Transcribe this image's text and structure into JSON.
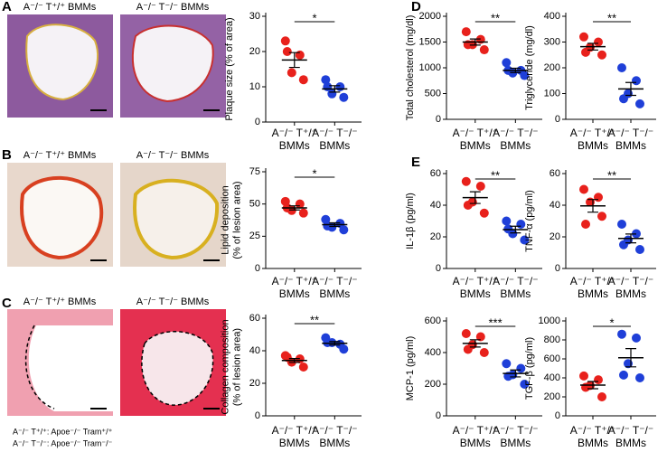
{
  "panels": {
    "letters": [
      "A",
      "B",
      "C",
      "D",
      "E"
    ],
    "image_titles": [
      "A⁻/⁻ T⁺/⁺ BMMs",
      "A⁻/⁻ T⁻/⁻ BMMs"
    ],
    "footnotes": [
      "A⁻/⁻ T⁺/⁺: Apoe⁻/⁻ Tram⁺/⁺",
      "A⁻/⁻ T⁻/⁻: Apoe⁻/⁻ Tram⁻/⁻"
    ]
  },
  "chart_data": [
    {
      "type": "scatter",
      "ylabel": [
        "Plaque size (% of area)"
      ],
      "ylim": [
        0,
        30
      ],
      "yticks": [
        0,
        10,
        20,
        30
      ],
      "significance": "*",
      "categories": [
        [
          "A⁻/⁻ T⁺/⁺",
          "BMMs"
        ],
        [
          "A⁻/⁻ T⁻/⁻",
          "BMMs"
        ]
      ],
      "groups": [
        {
          "color": "#e8211c",
          "values": [
            23,
            19,
            14,
            12,
            20
          ],
          "mean": 17.6,
          "sem": 2.1
        },
        {
          "color": "#1f3fd8",
          "values": [
            12,
            10,
            8,
            7,
            10
          ],
          "mean": 9.4,
          "sem": 0.9
        }
      ]
    },
    {
      "type": "scatter",
      "ylabel": [
        "Lipid deposition",
        "(% of lesion area)"
      ],
      "ylim": [
        0,
        75
      ],
      "yticks": [
        0,
        25,
        50,
        75
      ],
      "significance": "*",
      "categories": [
        [
          "A⁻/⁻ T⁺/⁺",
          "BMMs"
        ],
        [
          "A⁻/⁻ T⁻/⁻",
          "BMMs"
        ]
      ],
      "groups": [
        {
          "color": "#e8211c",
          "values": [
            52,
            50,
            45,
            43,
            47
          ],
          "mean": 47,
          "sem": 1.6
        },
        {
          "color": "#1f3fd8",
          "values": [
            38,
            35,
            32,
            30,
            33
          ],
          "mean": 34,
          "sem": 1.4
        }
      ]
    },
    {
      "type": "scatter",
      "ylabel": [
        "Collagen composition",
        "(% of lesion area)"
      ],
      "ylim": [
        0,
        60
      ],
      "yticks": [
        0,
        20,
        40,
        60
      ],
      "significance": "**",
      "categories": [
        [
          "A⁻/⁻ T⁺/⁺",
          "BMMs"
        ],
        [
          "A⁻/⁻ T⁻/⁻",
          "BMMs"
        ]
      ],
      "groups": [
        {
          "color": "#e8211c",
          "values": [
            37,
            35,
            33,
            30,
            36
          ],
          "mean": 34,
          "sem": 1.2
        },
        {
          "color": "#1f3fd8",
          "values": [
            48,
            44,
            45,
            41,
            45
          ],
          "mean": 44.6,
          "sem": 1.1
        }
      ]
    },
    {
      "type": "scatter",
      "ylabel": [
        "Total cholesterol (mg/dl)"
      ],
      "ylim": [
        0,
        2000
      ],
      "yticks": [
        0,
        500,
        1000,
        1500,
        2000
      ],
      "significance": "**",
      "categories": [
        [
          "A⁻/⁻ T⁺/⁺",
          "BMMs"
        ],
        [
          "A⁻/⁻ T⁻/⁻",
          "BMMs"
        ]
      ],
      "groups": [
        {
          "color": "#e8211c",
          "values": [
            1700,
            1550,
            1450,
            1350,
            1450
          ],
          "mean": 1500,
          "sem": 59
        },
        {
          "color": "#1f3fd8",
          "values": [
            1100,
            950,
            900,
            850,
            950
          ],
          "mean": 950,
          "sem": 42
        }
      ]
    },
    {
      "type": "scatter",
      "ylabel": [
        "Triglyceride (mg/dl)"
      ],
      "ylim": [
        0,
        400
      ],
      "yticks": [
        0,
        100,
        200,
        300,
        400
      ],
      "significance": "**",
      "categories": [
        [
          "A⁻/⁻ T⁺/⁺",
          "BMMs"
        ],
        [
          "A⁻/⁻ T⁻/⁻",
          "BMMs"
        ]
      ],
      "groups": [
        {
          "color": "#e8211c",
          "values": [
            320,
            300,
            280,
            250,
            260
          ],
          "mean": 282,
          "sem": 13
        },
        {
          "color": "#1f3fd8",
          "values": [
            200,
            150,
            100,
            60,
            80
          ],
          "mean": 118,
          "sem": 25
        }
      ]
    },
    {
      "type": "scatter",
      "ylabel": [
        "IL-1β (pg/ml)"
      ],
      "ylim": [
        0,
        60
      ],
      "yticks": [
        0,
        20,
        40,
        60
      ],
      "significance": "**",
      "categories": [
        [
          "A⁻/⁻ T⁺/⁺",
          "BMMs"
        ],
        [
          "A⁻/⁻ T⁻/⁻",
          "BMMs"
        ]
      ],
      "groups": [
        {
          "color": "#e8211c",
          "values": [
            55,
            52,
            42,
            35,
            40
          ],
          "mean": 44.8,
          "sem": 3.7
        },
        {
          "color": "#1f3fd8",
          "values": [
            30,
            28,
            22,
            18,
            25
          ],
          "mean": 24.6,
          "sem": 2.1
        }
      ]
    },
    {
      "type": "scatter",
      "ylabel": [
        "TNF-α (pg/ml)"
      ],
      "ylim": [
        0,
        60
      ],
      "yticks": [
        0,
        20,
        40,
        60
      ],
      "significance": "**",
      "categories": [
        [
          "A⁻/⁻ T⁺/⁺",
          "BMMs"
        ],
        [
          "A⁻/⁻ T⁻/⁻",
          "BMMs"
        ]
      ],
      "groups": [
        {
          "color": "#e8211c",
          "values": [
            50,
            45,
            42,
            33,
            28
          ],
          "mean": 39.6,
          "sem": 4
        },
        {
          "color": "#1f3fd8",
          "values": [
            28,
            22,
            18,
            12,
            15
          ],
          "mean": 19,
          "sem": 2.8
        }
      ]
    },
    {
      "type": "scatter",
      "ylabel": [
        "MCP-1 (pg/ml)"
      ],
      "ylim": [
        0,
        600
      ],
      "yticks": [
        0,
        200,
        400,
        600
      ],
      "significance": "***",
      "categories": [
        [
          "A⁻/⁻ T⁺/⁺",
          "BMMs"
        ],
        [
          "A⁻/⁻ T⁻/⁻",
          "BMMs"
        ]
      ],
      "groups": [
        {
          "color": "#e8211c",
          "values": [
            520,
            500,
            450,
            400,
            420
          ],
          "mean": 458,
          "sem": 23
        },
        {
          "color": "#1f3fd8",
          "values": [
            330,
            300,
            260,
            200,
            250
          ],
          "mean": 268,
          "sem": 22
        }
      ]
    },
    {
      "type": "scatter",
      "ylabel": [
        "TGF-β (pg/ml)"
      ],
      "ylim": [
        0,
        1000
      ],
      "yticks": [
        0,
        200,
        400,
        600,
        800,
        1000
      ],
      "significance": "*",
      "categories": [
        [
          "A⁻/⁻ T⁺/⁺",
          "BMMs"
        ],
        [
          "A⁻/⁻ T⁻/⁻",
          "BMMs"
        ]
      ],
      "groups": [
        {
          "color": "#e8211c",
          "values": [
            420,
            380,
            320,
            200,
            300
          ],
          "mean": 324,
          "sem": 38
        },
        {
          "color": "#1f3fd8",
          "values": [
            860,
            820,
            550,
            400,
            430
          ],
          "mean": 612,
          "sem": 96
        }
      ]
    }
  ]
}
